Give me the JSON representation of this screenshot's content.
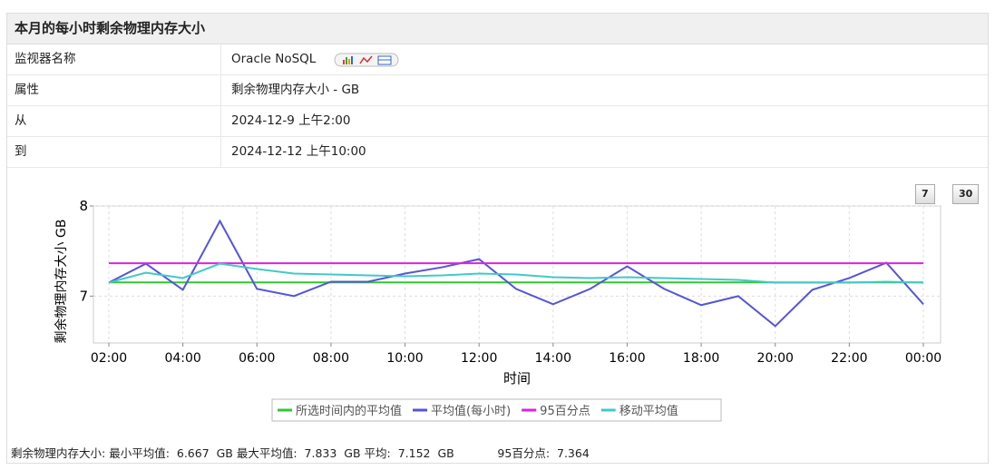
{
  "header": {
    "title": "本月的每小时剩余物理内存大小"
  },
  "table": {
    "rows": [
      [
        "监视器名称",
        "Oracle NoSQL"
      ],
      [
        "属性",
        "剩余物理内存大小 - GB"
      ],
      [
        "从",
        "2024-12-9 上午2:00"
      ],
      [
        "到",
        "2024-12-12 上午10:00"
      ]
    ]
  },
  "buttons": [
    "7",
    "30"
  ],
  "chart_data": {
    "type": "line",
    "y_label": "剩余物理内存大小 GB",
    "x_label": "时间",
    "categories": [
      "02:00",
      null,
      "04:00",
      null,
      "06:00",
      null,
      "08:00",
      null,
      "10:00",
      null,
      "12:00",
      null,
      "14:00",
      null,
      "16:00",
      null,
      "18:00",
      null,
      "20:00",
      null,
      "22:00",
      null,
      "00:00"
    ],
    "ylim": [
      6.48,
      8.0
    ],
    "yticks": [
      7,
      8
    ],
    "grid": true,
    "series": [
      {
        "name": "所选时间内的平均值",
        "color": "#33c633",
        "values": [
          7.152,
          7.152,
          7.152,
          7.152,
          7.152,
          7.152,
          7.152,
          7.152,
          7.152,
          7.152,
          7.152,
          7.152,
          7.152,
          7.152,
          7.152,
          7.152,
          7.152,
          7.152,
          7.152,
          7.152,
          7.152,
          7.152,
          7.152
        ]
      },
      {
        "name": "平均值(每小时)",
        "color": "#5555d8",
        "values": [
          7.15,
          7.36,
          7.07,
          7.833,
          7.08,
          7.0,
          7.16,
          7.16,
          7.25,
          7.32,
          7.41,
          7.08,
          6.91,
          7.08,
          7.33,
          7.08,
          6.9,
          7.0,
          6.667,
          7.07,
          7.2,
          7.37,
          6.91
        ]
      },
      {
        "name": "95百分点",
        "color": "#dd22dd",
        "values": [
          7.364,
          7.364,
          7.364,
          7.364,
          7.364,
          7.364,
          7.364,
          7.364,
          7.364,
          7.364,
          7.364,
          7.364,
          7.364,
          7.364,
          7.364,
          7.364,
          7.364,
          7.364,
          7.364,
          7.364,
          7.364,
          7.364,
          7.364
        ]
      },
      {
        "name": "移动平均值",
        "color": "#44c8c8",
        "values": [
          7.15,
          7.26,
          7.2,
          7.36,
          7.3,
          7.25,
          7.24,
          7.23,
          7.22,
          7.23,
          7.25,
          7.24,
          7.21,
          7.2,
          7.21,
          7.2,
          7.19,
          7.18,
          7.15,
          7.15,
          7.15,
          7.16,
          7.15
        ]
      }
    ]
  },
  "summary": {
    "label": "剩余物理内存大小:",
    "min_label": "最小平均值:",
    "min": "6.667",
    "unit": "GB",
    "max_label": "最大平均值:",
    "max": "7.833",
    "avg_label": "平均:",
    "avg": "7.152",
    "p95_label": "95百分点:",
    "p95": "7.364"
  }
}
